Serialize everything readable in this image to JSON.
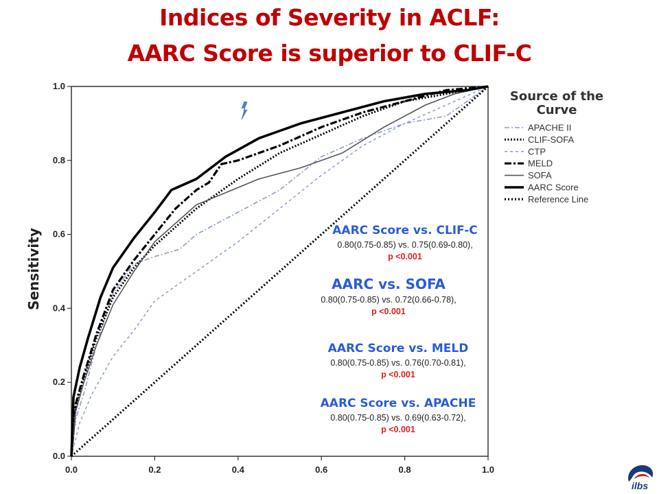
{
  "slide": {
    "title_line1": "Indices of Severity in ACLF:",
    "title_line2": "AARC Score is superior to CLIF-C",
    "logo_text": "ilbs"
  },
  "colors": {
    "title": "#c00000",
    "annotation_heading": "#2a5bd7",
    "p_value": "#e02020",
    "apache": "#8a9bc9",
    "default_line": "#000000",
    "sofa": "#555555"
  },
  "chart_data": {
    "type": "line",
    "xlabel": "",
    "ylabel": "Sensitivity",
    "xlim": [
      0.0,
      1.0
    ],
    "ylim": [
      0.0,
      1.0
    ],
    "xticks": [
      "0.0",
      "0.2",
      "0.4",
      "0.6",
      "0.8",
      "1.0"
    ],
    "yticks": [
      "0.0",
      "0.2",
      "0.4",
      "0.6",
      "0.8",
      "1.0"
    ],
    "legend": {
      "title": "Source of the Curve",
      "placement": "right",
      "entries": [
        "APACHE II",
        "CLIF-SOFA",
        "CTP",
        "MELD",
        "SOFA",
        "AARC Score",
        "Reference Line"
      ]
    },
    "series": [
      {
        "name": "APACHE II",
        "style": "dash-dot-light",
        "x": [
          0,
          0.01,
          0.03,
          0.06,
          0.1,
          0.15,
          0.2,
          0.26,
          0.3,
          0.4,
          0.5,
          0.6,
          0.7,
          0.8,
          0.9,
          1.0
        ],
        "y": [
          0,
          0.1,
          0.17,
          0.3,
          0.44,
          0.52,
          0.54,
          0.56,
          0.6,
          0.66,
          0.72,
          0.81,
          0.86,
          0.9,
          0.92,
          1.0
        ]
      },
      {
        "name": "CLIF-SOFA",
        "style": "dotted-heavy",
        "x": [
          0,
          0.01,
          0.03,
          0.06,
          0.1,
          0.15,
          0.2,
          0.3,
          0.4,
          0.5,
          0.6,
          0.7,
          0.8,
          0.9,
          1.0
        ],
        "y": [
          0,
          0.13,
          0.21,
          0.32,
          0.43,
          0.51,
          0.57,
          0.67,
          0.75,
          0.82,
          0.87,
          0.92,
          0.96,
          0.98,
          1.0
        ]
      },
      {
        "name": "CTP",
        "style": "dashed",
        "x": [
          0,
          0.02,
          0.05,
          0.1,
          0.15,
          0.2,
          0.3,
          0.4,
          0.5,
          0.6,
          0.7,
          0.8,
          0.9,
          1.0
        ],
        "y": [
          0,
          0.09,
          0.17,
          0.27,
          0.34,
          0.42,
          0.5,
          0.58,
          0.67,
          0.76,
          0.84,
          0.9,
          0.95,
          1.0
        ]
      },
      {
        "name": "MELD",
        "style": "dash-dot-heavy",
        "x": [
          0,
          0.01,
          0.03,
          0.06,
          0.1,
          0.15,
          0.2,
          0.25,
          0.3,
          0.33,
          0.36,
          0.4,
          0.5,
          0.6,
          0.7,
          0.8,
          0.9,
          1.0
        ],
        "y": [
          0,
          0.14,
          0.22,
          0.33,
          0.45,
          0.53,
          0.6,
          0.67,
          0.72,
          0.74,
          0.79,
          0.8,
          0.84,
          0.89,
          0.93,
          0.96,
          0.99,
          1.0
        ]
      },
      {
        "name": "SOFA",
        "style": "solid-thin",
        "x": [
          0,
          0.01,
          0.03,
          0.06,
          0.1,
          0.15,
          0.2,
          0.3,
          0.45,
          0.55,
          0.65,
          0.75,
          0.85,
          0.92,
          1.0
        ],
        "y": [
          0,
          0.12,
          0.2,
          0.3,
          0.41,
          0.5,
          0.58,
          0.68,
          0.75,
          0.78,
          0.82,
          0.89,
          0.95,
          0.98,
          1.0
        ]
      },
      {
        "name": "AARC Score",
        "style": "solid-heavy",
        "x": [
          0,
          0.005,
          0.02,
          0.04,
          0.07,
          0.1,
          0.15,
          0.2,
          0.24,
          0.3,
          0.37,
          0.45,
          0.55,
          0.65,
          0.75,
          0.85,
          0.95,
          1.0
        ],
        "y": [
          0,
          0.16,
          0.24,
          0.32,
          0.43,
          0.51,
          0.59,
          0.66,
          0.72,
          0.75,
          0.81,
          0.86,
          0.9,
          0.93,
          0.96,
          0.98,
          0.99,
          1.0
        ]
      },
      {
        "name": "Reference Line",
        "style": "dotted-reference",
        "x": [
          0,
          1.0
        ],
        "y": [
          0,
          1.0
        ]
      }
    ],
    "annotations": [
      {
        "heading": "AARC Score vs. CLIF-C",
        "detail": "0.80(0.75-0.85) vs. 0.75(0.69-0.80),",
        "p": "p <0.001"
      },
      {
        "heading": "AARC vs. SOFA",
        "detail": "0.80(0.75-0.85) vs. 0.72(0.66-0.78),",
        "p": "p <0.001"
      },
      {
        "heading": "AARC Score vs. MELD",
        "detail": "0.80(0.75-0.85) vs. 0.76(0.70-0.81),",
        "p": "p <0.001"
      },
      {
        "heading": "AARC Score vs. APACHE",
        "detail": "0.80(0.75-0.85) vs. 0.69(0.63-0.72),",
        "p": "p <0.001"
      }
    ]
  }
}
